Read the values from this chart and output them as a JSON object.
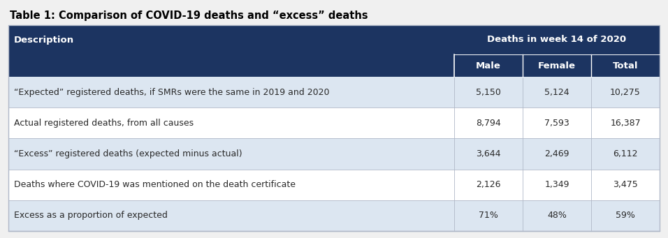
{
  "title": "Table 1: Comparison of COVID-19 deaths and “excess” deaths",
  "header_bg": "#1c3461",
  "header_text_color": "#ffffff",
  "subheader_text": "Deaths in week 14 of 2020",
  "col_headers": [
    "Male",
    "Female",
    "Total"
  ],
  "description_header": "Description",
  "rows": [
    {
      "description": "“Expected” registered deaths, if SMRs were the same in 2019 and 2020",
      "male": "5,150",
      "female": "5,124",
      "total": "10,275",
      "shaded": true
    },
    {
      "description": "Actual registered deaths, from all causes",
      "male": "8,794",
      "female": "7,593",
      "total": "16,387",
      "shaded": false
    },
    {
      "description": "“Excess” registered deaths (expected minus actual)",
      "male": "3,644",
      "female": "2,469",
      "total": "6,112",
      "shaded": true
    },
    {
      "description": "Deaths where COVID-19 was mentioned on the death certificate",
      "male": "2,126",
      "female": "1,349",
      "total": "3,475",
      "shaded": false
    },
    {
      "description": "Excess as a proportion of expected",
      "male": "71%",
      "female": "48%",
      "total": "59%",
      "shaded": true
    }
  ],
  "row_shaded_color": "#dce6f1",
  "row_unshaded_color": "#ffffff",
  "divider_color": "#b0b8c8",
  "outer_border_color": "#b0b8c8",
  "fig_bg_color": "#f0f0f0",
  "title_fontsize": 10.5,
  "header_fontsize": 9.5,
  "cell_fontsize": 9.0,
  "figsize": [
    9.56,
    3.41
  ],
  "dpi": 100
}
